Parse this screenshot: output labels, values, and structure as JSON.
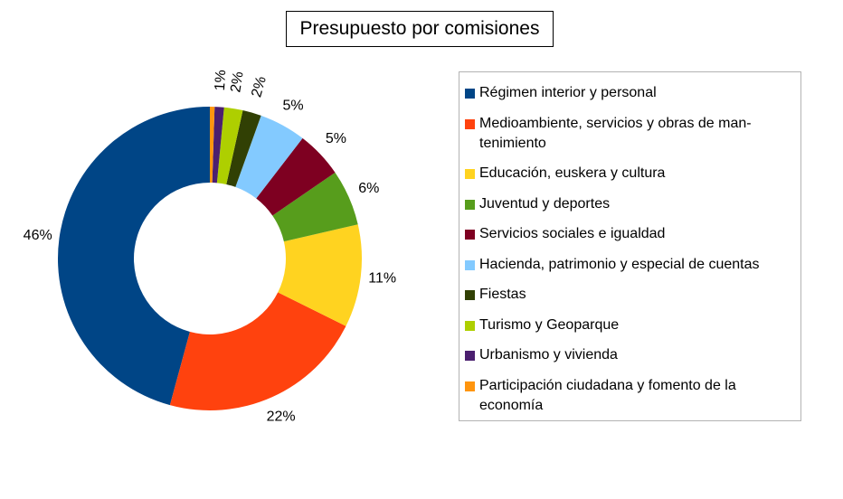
{
  "chart_data": {
    "type": "pie",
    "variant": "donut",
    "title": "Presupuesto por comisiones",
    "legend_position": "right",
    "categories": [
      "Régimen interior y personal",
      "Medioambiente, servicios y obras de mantenimiento",
      "Educación, euskera y cultura",
      "Juventud y deportes",
      "Servicios sociales e igualdad",
      "Hacienda, patrimonio y especial de cuentas",
      "Fiestas",
      "Turismo y Geoparque",
      "Urbanismo y vivienda",
      "Participación ciudadana y fomento de la economía"
    ],
    "legend_labels": [
      "Régimen interior y personal",
      "Medioambiente, servicios y obras de man-tenimiento",
      "Educación, euskera y cultura",
      "Juventud y deportes",
      "Servicios sociales e igualdad",
      "Hacienda, patrimonio y especial de cuentas",
      "Fiestas",
      "Turismo y Geoparque",
      "Urbanismo y vivienda",
      "Participación ciudadana y fomento de la economía"
    ],
    "values": [
      46,
      22,
      11,
      6,
      5,
      5,
      2,
      2,
      1,
      0.5
    ],
    "labels": [
      "46%",
      "22%",
      "11%",
      "6%",
      "5%",
      "5%",
      "2%",
      "2%",
      "1%",
      ""
    ],
    "colors": [
      "#004586",
      "#ff420e",
      "#ffd320",
      "#579d1c",
      "#7e0021",
      "#83caff",
      "#314004",
      "#aecf00",
      "#4b1f6f",
      "#ff950e"
    ]
  }
}
